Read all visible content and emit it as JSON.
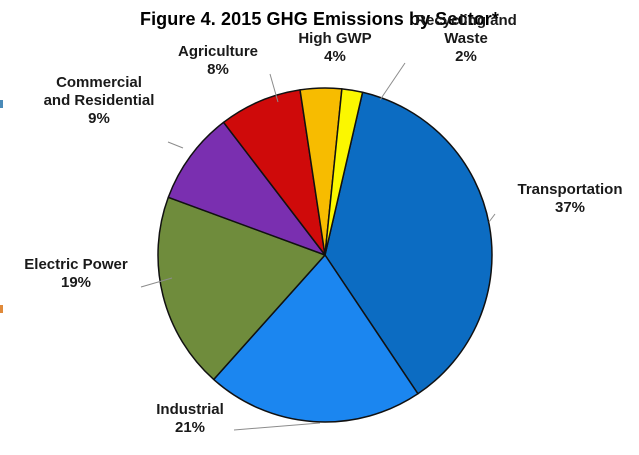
{
  "chart_data": {
    "type": "pie",
    "title": "Figure 4. 2015 GHG Emissions by Sector*",
    "start_angle_deg": 13,
    "direction": "clockwise-from-12",
    "order": [
      "Transportation",
      "Industrial",
      "Electric Power",
      "Commercial and Residential",
      "Agriculture",
      "High GWP",
      "Recycling and Waste"
    ],
    "slices": [
      {
        "lines": [
          "Transportation"
        ],
        "pct_label": "37%",
        "value": 37,
        "color": "#0c6cc2"
      },
      {
        "lines": [
          "Industrial"
        ],
        "pct_label": "21%",
        "value": 21,
        "color": "#1b86f0"
      },
      {
        "lines": [
          "Electric Power"
        ],
        "pct_label": "19%",
        "value": 19,
        "color": "#6f8c3c"
      },
      {
        "lines": [
          "Commercial",
          "and Residential"
        ],
        "pct_label": "9%",
        "value": 9,
        "color": "#7a2fb0"
      },
      {
        "lines": [
          "Agriculture"
        ],
        "pct_label": "8%",
        "value": 8,
        "color": "#cf0a0a"
      },
      {
        "lines": [
          "High GWP"
        ],
        "pct_label": "4%",
        "value": 4,
        "color": "#f7bc00"
      },
      {
        "lines": [
          "Recycling and",
          "Waste"
        ],
        "pct_label": "2%",
        "value": 2,
        "color": "#fbf700"
      }
    ]
  }
}
